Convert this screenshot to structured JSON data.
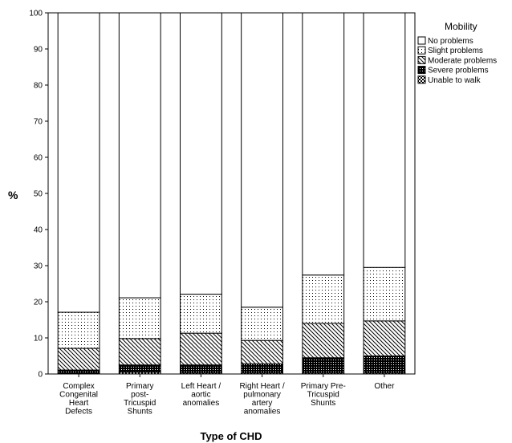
{
  "chart_data": {
    "type": "bar",
    "stacked": true,
    "xlabel": "Type of CHD",
    "ylabel": "%",
    "ylim": [
      0,
      100
    ],
    "yticks": [
      0,
      10,
      20,
      30,
      40,
      50,
      60,
      70,
      80,
      90,
      100
    ],
    "grid": false,
    "legend_title": "Mobility",
    "legend_position": "top-right",
    "categories": [
      [
        "Complex",
        "Congenital",
        "Heart",
        "Defects"
      ],
      [
        "Primary",
        "post-",
        "Tricuspid",
        "Shunts"
      ],
      [
        "Left Heart /",
        "aortic",
        "anomalies"
      ],
      [
        "Right Heart /",
        "pulmonary",
        "artery",
        "anomalies"
      ],
      [
        "Primary Pre-",
        "Tricuspid",
        "Shunts"
      ],
      [
        "Other"
      ]
    ],
    "series": [
      {
        "name": "Unable to walk",
        "pattern": "checker",
        "values": [
          0.2,
          0.5,
          0.3,
          0.3,
          0.3,
          0.3
        ]
      },
      {
        "name": "Severe problems",
        "pattern": "dense",
        "values": [
          0.9,
          2.0,
          2.2,
          2.5,
          4.2,
          4.7
        ]
      },
      {
        "name": "Moderate problems",
        "pattern": "hatch",
        "values": [
          6.0,
          7.3,
          8.8,
          6.5,
          9.5,
          9.7
        ]
      },
      {
        "name": "Slight problems",
        "pattern": "dots",
        "values": [
          10.0,
          11.3,
          10.8,
          9.2,
          13.4,
          14.8
        ]
      },
      {
        "name": "No problems",
        "pattern": "none",
        "values": [
          82.9,
          78.9,
          77.9,
          81.5,
          72.6,
          70.5
        ]
      }
    ],
    "legend_order": [
      "No problems",
      "Slight problems",
      "Moderate problems",
      "Severe problems",
      "Unable to walk"
    ]
  }
}
